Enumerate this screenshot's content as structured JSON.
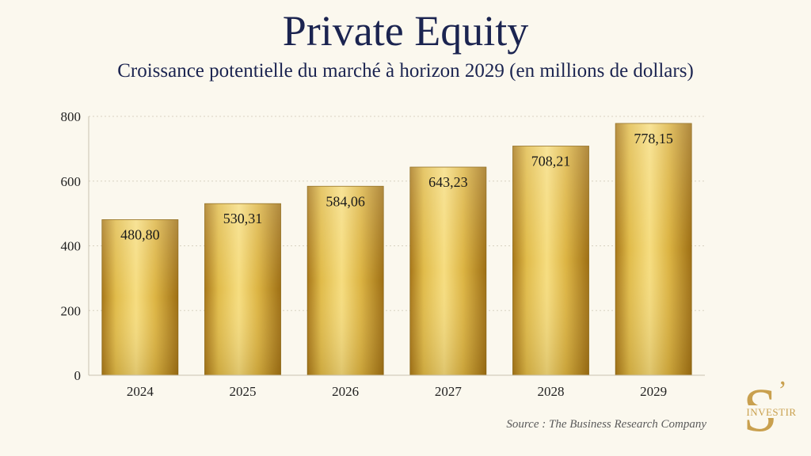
{
  "header": {
    "title": "Private Equity",
    "subtitle": "Croissance potentielle du marché à horizon 2029 (en millions de dollars)"
  },
  "footer": {
    "source": "Source : The Business Research Company"
  },
  "logo": {
    "letter": "S",
    "apostrophe": "’",
    "word": "INVESTIR",
    "color": "#c9a04e"
  },
  "chart_data": {
    "type": "bar",
    "categories": [
      "2024",
      "2025",
      "2026",
      "2027",
      "2028",
      "2029"
    ],
    "values": [
      480.8,
      530.31,
      584.06,
      643.23,
      708.21,
      778.15
    ],
    "value_labels": [
      "480,80",
      "530,31",
      "584,06",
      "643,23",
      "708,21",
      "778,15"
    ],
    "yticks": [
      0,
      200,
      400,
      600,
      800
    ],
    "ylim": [
      0,
      800
    ],
    "grid": true,
    "legend": "none",
    "bar_color": "#d9b236"
  }
}
